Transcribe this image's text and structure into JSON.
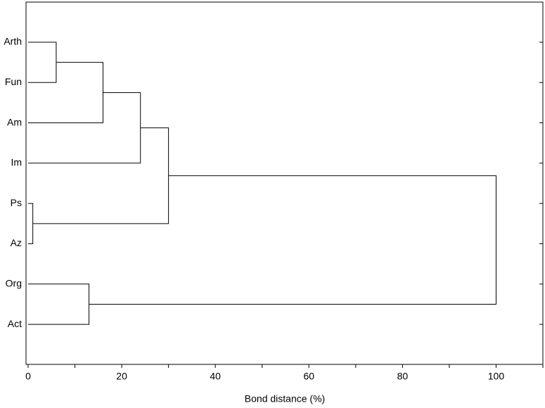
{
  "chart_data": {
    "type": "dendrogram",
    "x_label": "Bond distance (%)",
    "leaves": [
      "Arth",
      "Fun",
      "Am",
      "Im",
      "Ps",
      "Az",
      "Org",
      "Act"
    ],
    "merges": [
      {
        "left": 0,
        "right": 1,
        "height": 6
      },
      {
        "left": 4,
        "right": 5,
        "height": 1
      },
      {
        "left": 8,
        "right": 2,
        "height": 16
      },
      {
        "left": 10,
        "right": 3,
        "height": 24
      },
      {
        "left": 6,
        "right": 7,
        "height": 13
      },
      {
        "left": 11,
        "right": 9,
        "height": 30
      },
      {
        "left": 13,
        "right": 12,
        "height": 100
      }
    ],
    "xlim": [
      0,
      110
    ],
    "xticks": [
      0,
      20,
      40,
      60,
      80,
      100
    ],
    "xminorticks": [
      10,
      30,
      50,
      70,
      90,
      110
    ],
    "color": "#000000"
  }
}
